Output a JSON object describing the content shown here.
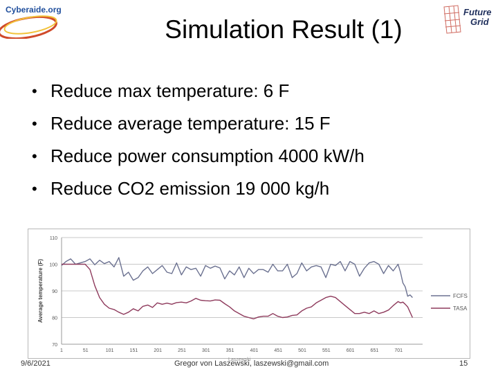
{
  "slide": {
    "title": "Simulation Result (1)",
    "bullets": [
      "Reduce max temperature: 6 F",
      "Reduce average temperature: 15 F",
      "Reduce power consumption 4000 kW/h",
      "Reduce CO2 emission 19 000 kg/h"
    ],
    "bullet_glyph": "•"
  },
  "logos": {
    "left": {
      "text": "Cyberaide.org"
    },
    "right": {
      "line1": "Future",
      "line2": "Grid"
    }
  },
  "footer": {
    "date": "9/6/2021",
    "author": "Gregor von Laszewski, laszewski@gmail.com",
    "faint_text": "Laszewski",
    "page": "15"
  },
  "colors": {
    "fcfs": "#6b7190",
    "tasa": "#8e3a5c",
    "grid": "#c8c8c8",
    "title": "#000000",
    "logo_blue": "#1f4e9c",
    "logo_red": "#c0392b"
  },
  "chart_data": {
    "type": "line",
    "title": "",
    "xlabel": "",
    "ylabel": "Average temperature (F)",
    "ylim": [
      70,
      110
    ],
    "yticks": [
      70,
      80,
      90,
      100,
      110
    ],
    "xlim": [
      1,
      751
    ],
    "xticks": [
      "1",
      "51",
      "101",
      "151",
      "201",
      "251",
      "301",
      "351",
      "401",
      "451",
      "501",
      "551",
      "601",
      "651",
      "701"
    ],
    "grid": "horizontal",
    "legend": "right",
    "series": [
      {
        "name": "FCFS",
        "x": [
          1,
          10,
          20,
          30,
          40,
          50,
          60,
          70,
          80,
          90,
          100,
          110,
          120,
          130,
          140,
          150,
          160,
          170,
          180,
          190,
          200,
          210,
          220,
          230,
          240,
          250,
          260,
          270,
          280,
          290,
          300,
          310,
          320,
          330,
          340,
          350,
          360,
          370,
          380,
          390,
          400,
          410,
          420,
          430,
          440,
          450,
          460,
          470,
          480,
          490,
          500,
          510,
          520,
          530,
          540,
          550,
          560,
          570,
          580,
          590,
          600,
          610,
          620,
          630,
          640,
          650,
          660,
          670,
          680,
          690,
          700,
          705,
          710,
          715,
          720,
          725,
          730
        ],
        "values": [
          99.5,
          101,
          102,
          100,
          100.5,
          101,
          102,
          99.8,
          101.5,
          100.2,
          101,
          99,
          102.5,
          95.5,
          97,
          94,
          95,
          97.5,
          99,
          96.5,
          98,
          99.5,
          97,
          96.5,
          100.5,
          96,
          99,
          98,
          98.5,
          95.5,
          99.5,
          98.5,
          99.3,
          98.6,
          94.5,
          97.5,
          96,
          99,
          95,
          98.5,
          96.5,
          98,
          98,
          97,
          100,
          97.5,
          97.5,
          100,
          95,
          96.5,
          100.5,
          97.5,
          99,
          99.5,
          99,
          95,
          100,
          99.5,
          101,
          97.5,
          101,
          100,
          95.5,
          98.5,
          100.5,
          101,
          100,
          96.5,
          99.5,
          97.5,
          100,
          97,
          93,
          91.5,
          88,
          88.5,
          87.5
        ]
      },
      {
        "name": "TASA",
        "x": [
          1,
          10,
          20,
          30,
          40,
          50,
          60,
          70,
          80,
          90,
          100,
          110,
          120,
          130,
          140,
          150,
          160,
          170,
          180,
          190,
          200,
          210,
          220,
          230,
          240,
          250,
          260,
          270,
          280,
          290,
          300,
          310,
          320,
          330,
          340,
          350,
          360,
          370,
          380,
          390,
          400,
          410,
          420,
          430,
          440,
          450,
          460,
          470,
          480,
          490,
          500,
          510,
          520,
          530,
          540,
          550,
          560,
          570,
          580,
          590,
          600,
          610,
          620,
          630,
          640,
          650,
          660,
          670,
          680,
          690,
          700,
          705,
          710,
          715,
          720,
          725,
          730
        ],
        "values": [
          100,
          100,
          100,
          100,
          100,
          100,
          98,
          92,
          87.5,
          85,
          83.5,
          83,
          82,
          81.2,
          82,
          83.3,
          82.5,
          84.2,
          84.7,
          83.8,
          85.5,
          85,
          85.4,
          85,
          85.6,
          85.8,
          85.5,
          86.2,
          87.2,
          86.5,
          86.3,
          86.2,
          86.6,
          86.5,
          85.2,
          84,
          82.5,
          81.5,
          80.5,
          80,
          79.5,
          80.2,
          80.5,
          80.5,
          81.5,
          80.5,
          80,
          80.2,
          80.8,
          81,
          82.5,
          83.5,
          84,
          85.5,
          86.5,
          87.5,
          88,
          87.5,
          86,
          84.5,
          83,
          81.5,
          81.5,
          82,
          81.5,
          82.5,
          81.5,
          82,
          82.8,
          84.5,
          86,
          85.5,
          85.8,
          85,
          84,
          82,
          80
        ]
      }
    ]
  }
}
